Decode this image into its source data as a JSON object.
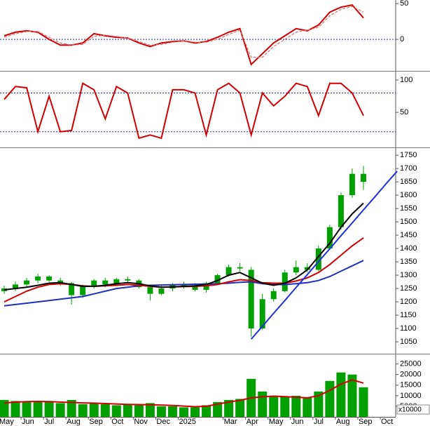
{
  "chart_data": [
    {
      "type": "line",
      "series": [
        {
          "color": "#d40000",
          "values": [
            5,
            10,
            12,
            10,
            0,
            -8,
            -8,
            -5,
            8,
            5,
            3,
            2,
            -5,
            -10,
            -5,
            -3,
            -2,
            -5,
            -3,
            3,
            10,
            15,
            -35,
            -20,
            -5,
            5,
            15,
            12,
            20,
            38,
            45,
            48,
            30,
            null,
            null,
            null
          ]
        },
        {
          "color": "#e07070",
          "dash": true,
          "values": [
            3,
            8,
            11,
            11,
            3,
            -5,
            -8,
            -7,
            4,
            6,
            4,
            2,
            -3,
            -8,
            -7,
            -4,
            -2,
            -4,
            -4,
            0,
            7,
            13,
            -25,
            -25,
            -10,
            0,
            10,
            13,
            17,
            33,
            42,
            46,
            38,
            null,
            null,
            null
          ]
        }
      ],
      "ylim": [
        -43,
        55
      ],
      "yticks": [
        0,
        50
      ],
      "levels": [
        0
      ]
    },
    {
      "type": "line",
      "series": [
        {
          "color": "#d40000",
          "values": [
            70,
            90,
            88,
            20,
            75,
            20,
            22,
            95,
            85,
            40,
            90,
            80,
            10,
            15,
            10,
            85,
            85,
            80,
            15,
            85,
            95,
            80,
            15,
            80,
            60,
            75,
            95,
            90,
            45,
            95,
            95,
            80,
            45,
            null,
            null,
            null
          ]
        }
      ],
      "ylim": [
        -2,
        112
      ],
      "yticks": [
        50,
        100
      ],
      "levels": [
        20,
        80
      ]
    },
    {
      "type": "candlestick",
      "color": "#00a000",
      "open": [
        1240,
        1250,
        1265,
        1280,
        1295,
        1280,
        1270,
        1225,
        1260,
        1280,
        1265,
        1285,
        1280,
        1255,
        1230,
        1250,
        1265,
        1260,
        1245,
        1270,
        1300,
        1330,
        1320,
        1100,
        1210,
        1240,
        1310,
        1330,
        1320,
        1400,
        1480,
        1600,
        1680,
        null,
        null,
        null
      ],
      "high": [
        1260,
        1275,
        1290,
        1305,
        1300,
        1290,
        1275,
        1265,
        1285,
        1290,
        1290,
        1295,
        1285,
        1260,
        1260,
        1270,
        1275,
        1270,
        1275,
        1305,
        1340,
        1345,
        1330,
        1230,
        1250,
        1320,
        1355,
        1345,
        1410,
        1490,
        1610,
        1700,
        1710,
        null,
        null,
        null
      ],
      "low": [
        1230,
        1240,
        1255,
        1270,
        1275,
        1260,
        1190,
        1215,
        1250,
        1255,
        1260,
        1270,
        1250,
        1205,
        1225,
        1240,
        1250,
        1240,
        1235,
        1265,
        1295,
        1315,
        1070,
        1095,
        1200,
        1235,
        1300,
        1310,
        1315,
        1395,
        1470,
        1590,
        1620,
        null,
        null,
        null
      ],
      "close": [
        1250,
        1265,
        1280,
        1295,
        1280,
        1270,
        1225,
        1260,
        1280,
        1265,
        1285,
        1280,
        1255,
        1230,
        1250,
        1265,
        1260,
        1245,
        1270,
        1300,
        1330,
        1325,
        1100,
        1210,
        1240,
        1310,
        1330,
        1320,
        1400,
        1480,
        1600,
        1680,
        1650,
        null,
        null,
        null
      ],
      "series": [
        {
          "color": "#1f2fbf",
          "values": [
            1185,
            1190,
            1195,
            1200,
            1205,
            1210,
            1215,
            1220,
            1230,
            1240,
            1250,
            1255,
            1260,
            1262,
            1263,
            1264,
            1265,
            1266,
            1267,
            1268,
            1270,
            1273,
            1275,
            1268,
            1265,
            1265,
            1268,
            1272,
            1280,
            1295,
            1315,
            1335,
            1355,
            null,
            null,
            null
          ]
        },
        {
          "color": "#d40000",
          "values": [
            1200,
            1220,
            1240,
            1255,
            1265,
            1268,
            1265,
            1260,
            1258,
            1260,
            1262,
            1265,
            1262,
            1258,
            1255,
            1256,
            1257,
            1258,
            1260,
            1265,
            1275,
            1283,
            1280,
            1272,
            1270,
            1270,
            1278,
            1290,
            1310,
            1340,
            1375,
            1410,
            1440,
            null,
            null,
            null
          ]
        },
        {
          "color": "#000000",
          "values": [
            1245,
            1250,
            1255,
            1262,
            1270,
            1272,
            1265,
            1258,
            1258,
            1262,
            1268,
            1272,
            1268,
            1260,
            1255,
            1256,
            1258,
            1260,
            1265,
            1280,
            1300,
            1310,
            1290,
            1270,
            1262,
            1270,
            1290,
            1320,
            1370,
            1420,
            1480,
            1530,
            1570,
            null,
            null,
            null
          ]
        },
        {
          "color": "#1f2fdf",
          "values": [
            null,
            null,
            null,
            null,
            null,
            null,
            null,
            null,
            null,
            null,
            null,
            null,
            null,
            null,
            null,
            null,
            null,
            null,
            null,
            null,
            null,
            null,
            1060,
            1108,
            1157,
            1205,
            1254,
            1302,
            1351,
            1399,
            1448,
            1496,
            1545,
            1593,
            1642,
            1690
          ]
        }
      ],
      "ylim": [
        1008,
        1774
      ],
      "yticks": [
        1050,
        1100,
        1150,
        1200,
        1250,
        1300,
        1350,
        1400,
        1450,
        1500,
        1550,
        1600,
        1650,
        1700,
        1750
      ]
    },
    {
      "type": "bar",
      "color": "#00a000",
      "categories": [
        "May",
        null,
        "Jun",
        null,
        "Jul",
        null,
        "Aug",
        null,
        "Sep",
        null,
        "Oct",
        null,
        "Nov",
        null,
        "Dec",
        null,
        "2025",
        null,
        null,
        null,
        "Mar",
        null,
        "Apr",
        null,
        "May",
        null,
        "Jun",
        null,
        "Jul",
        null,
        "Aug",
        null,
        "Sep",
        null,
        "Oct",
        null
      ],
      "values": [
        8000,
        7500,
        7000,
        7000,
        7500,
        6500,
        8000,
        6000,
        6500,
        6000,
        5500,
        6000,
        5500,
        6500,
        5000,
        5000,
        4500,
        4500,
        5500,
        7000,
        8000,
        8500,
        18000,
        12000,
        10000,
        9500,
        10000,
        9000,
        12000,
        17000,
        21000,
        20000,
        14000,
        null,
        null,
        null
      ],
      "series": [
        {
          "color": "#d40000",
          "values": [
            6500,
            7000,
            7200,
            7300,
            7200,
            7000,
            6800,
            6600,
            6500,
            6300,
            6100,
            5900,
            5800,
            5700,
            5600,
            5400,
            5100,
            4800,
            5000,
            6000,
            7000,
            7800,
            9000,
            9500,
            9800,
            9600,
            9300,
            9000,
            10000,
            12500,
            15500,
            17500,
            16000,
            null,
            null,
            null
          ]
        }
      ],
      "ylim": [
        0,
        29200
      ],
      "yticks": [
        5000,
        10000,
        15000,
        20000,
        25000
      ],
      "unit_label": "x10000"
    }
  ]
}
